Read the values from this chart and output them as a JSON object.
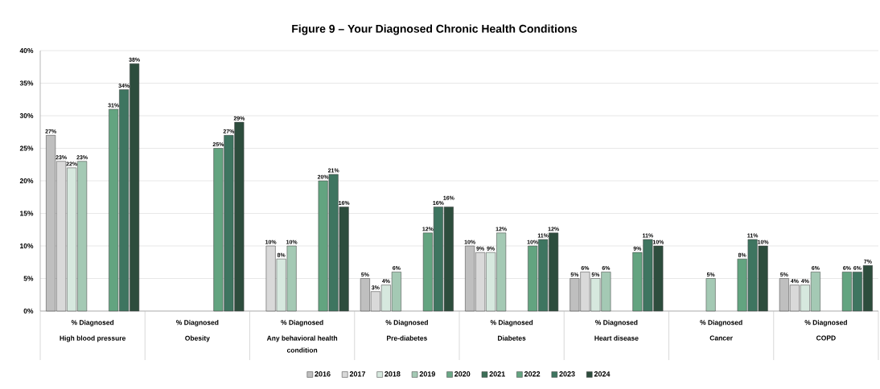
{
  "chart_data": {
    "type": "bar",
    "title": "Figure 9 – Your Diagnosed Chronic Health Conditions",
    "categories": [
      "High blood pressure",
      "Obesity",
      "Any behavioral health condition",
      "Pre-diabetes",
      "Diabetes",
      "Heart disease",
      "Cancer",
      "COPD"
    ],
    "annotations": [
      "% Diagnosed",
      "% Diagnosed",
      "% Diagnosed",
      "% Diagnosed",
      "% Diagnosed",
      "% Diagnosed",
      "% Diagnosed",
      "% Diagnosed"
    ],
    "series": [
      {
        "name": "2016",
        "color": "#bfbfbf",
        "values": [
          27,
          null,
          null,
          5,
          10,
          5,
          null,
          5
        ],
        "value_labels": [
          "27%",
          null,
          null,
          "5%",
          "10%",
          "5%",
          null,
          "5%"
        ]
      },
      {
        "name": "2017",
        "color": "#d9d9d9",
        "values": [
          23,
          null,
          10,
          3,
          9,
          6,
          null,
          4
        ],
        "value_labels": [
          "23%",
          null,
          "10%",
          "3%",
          "9%",
          "6%",
          null,
          "4%"
        ]
      },
      {
        "name": "2018",
        "color": "#d6e8de",
        "values": [
          22,
          null,
          8,
          4,
          9,
          5,
          null,
          4
        ],
        "value_labels": [
          "22%",
          null,
          "8%",
          "4%",
          "9%",
          "5%",
          null,
          "4%"
        ]
      },
      {
        "name": "2019",
        "color": "#a4c9b4",
        "values": [
          23,
          null,
          10,
          6,
          12,
          6,
          5,
          6
        ],
        "value_labels": [
          "23%",
          null,
          "10%",
          "6%",
          "12%",
          "6%",
          "5%",
          "6%"
        ]
      },
      {
        "name": "2020",
        "color": "#6aa886",
        "values": [
          null,
          null,
          null,
          null,
          null,
          null,
          null,
          null
        ],
        "value_labels": [
          null,
          null,
          null,
          null,
          null,
          null,
          null,
          null
        ]
      },
      {
        "name": "2021",
        "color": "#3c6e57",
        "values": [
          null,
          null,
          null,
          null,
          null,
          null,
          null,
          null
        ],
        "value_labels": [
          null,
          null,
          null,
          null,
          null,
          null,
          null,
          null
        ]
      },
      {
        "name": "2022",
        "color": "#63a480",
        "values": [
          31,
          25,
          20,
          12,
          10,
          9,
          8,
          6
        ],
        "value_labels": [
          "31%",
          "25%",
          "20%",
          "12%",
          "10%",
          "9%",
          "8%",
          "6%"
        ]
      },
      {
        "name": "2023",
        "color": "#3e7560",
        "values": [
          34,
          27,
          21,
          16,
          11,
          11,
          11,
          6
        ],
        "value_labels": [
          "34%",
          "27%",
          "21%",
          "16%",
          "11%",
          "11%",
          "11%",
          "6%"
        ]
      },
      {
        "name": "2024",
        "color": "#2d4d3d",
        "values": [
          38,
          29,
          16,
          16,
          12,
          10,
          10,
          7
        ],
        "value_labels": [
          "38%",
          "29%",
          "16%",
          "16%",
          "12%",
          "10%",
          "10%",
          "7%"
        ]
      }
    ],
    "ylim": [
      0,
      40
    ],
    "yticks": [
      {
        "value": 0,
        "label": "0%"
      },
      {
        "value": 5,
        "label": "5%"
      },
      {
        "value": 10,
        "label": "10%"
      },
      {
        "value": 15,
        "label": "15%"
      },
      {
        "value": 20,
        "label": "20%"
      },
      {
        "value": 25,
        "label": "25%"
      },
      {
        "value": 30,
        "label": "30%"
      },
      {
        "value": 35,
        "label": "35%"
      },
      {
        "value": 40,
        "label": "40%"
      }
    ],
    "grid": "y",
    "legend": "bottom"
  }
}
